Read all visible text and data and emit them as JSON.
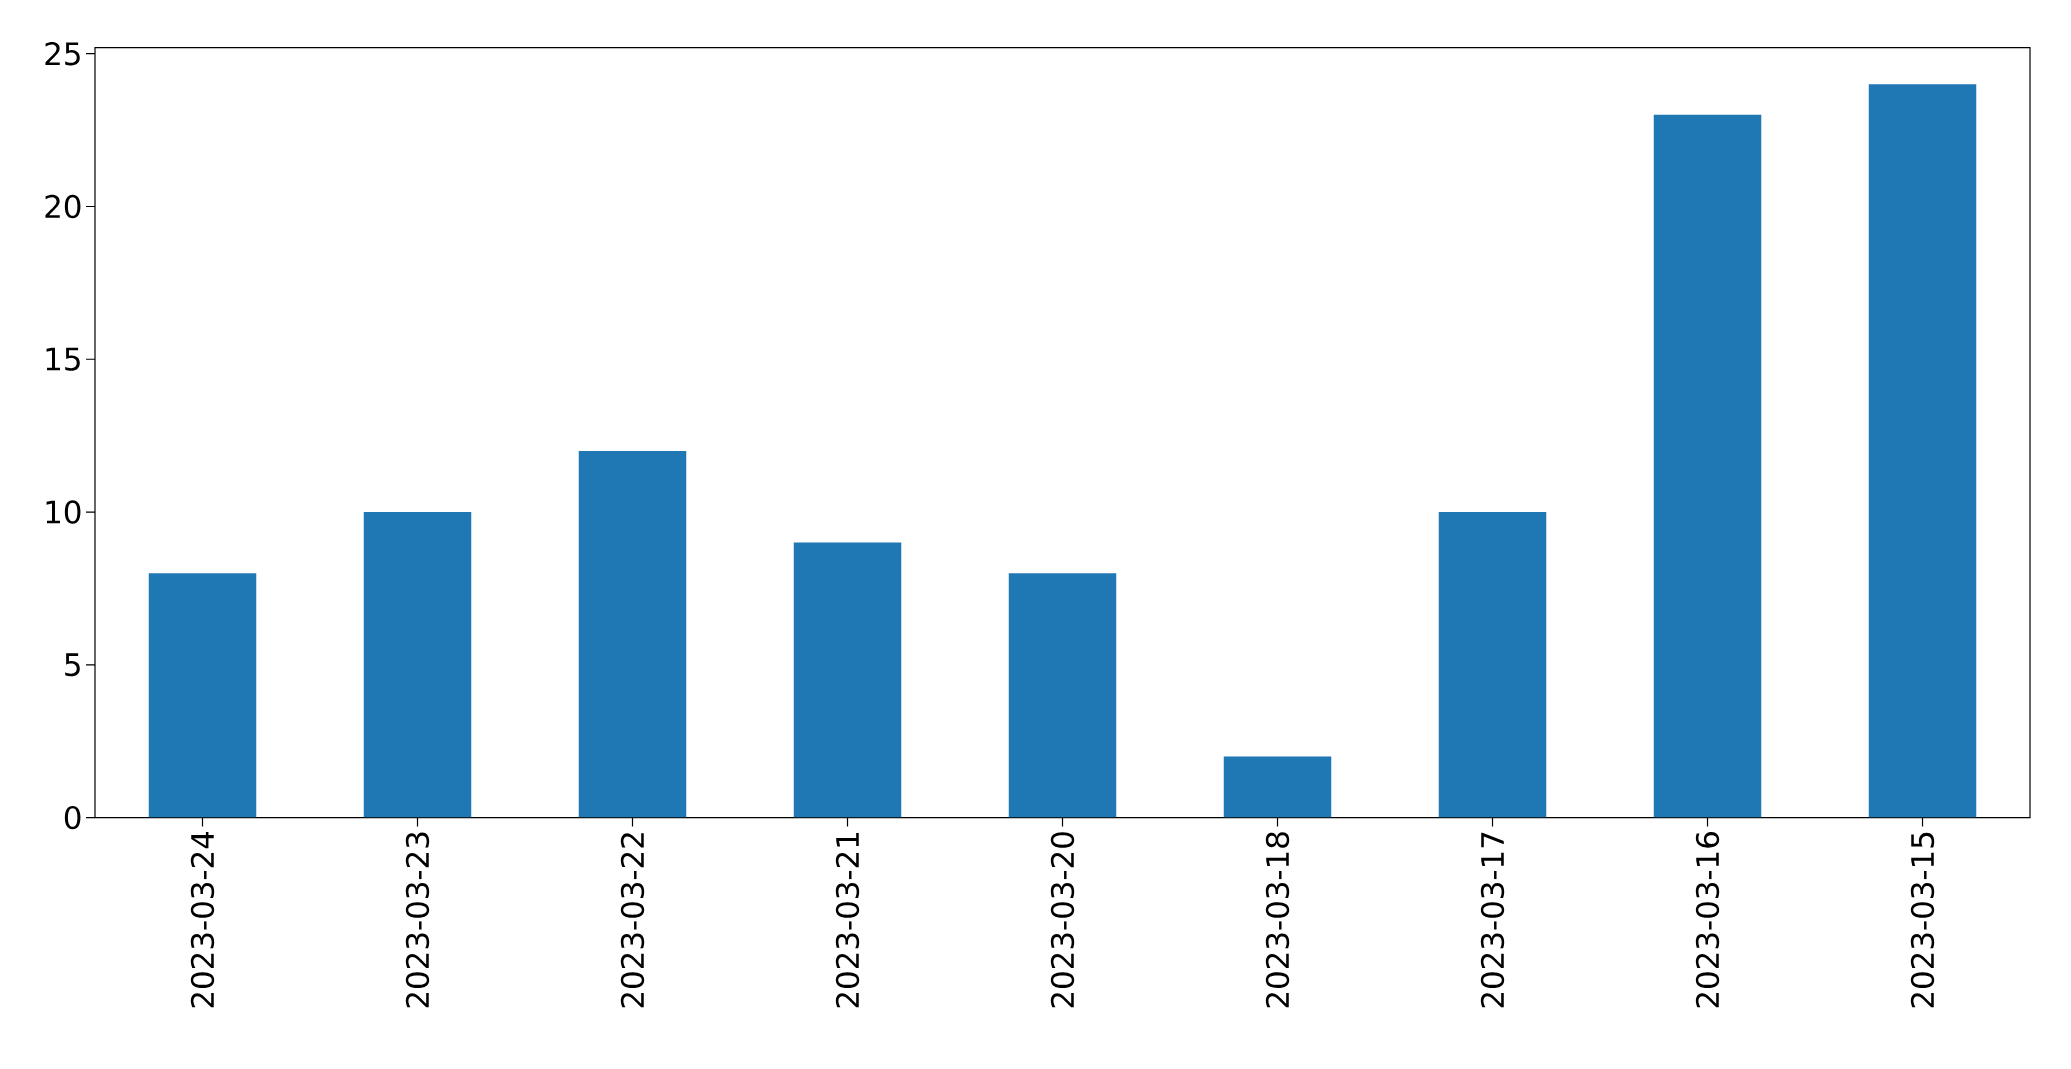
{
  "chart_data": {
    "type": "bar",
    "categories": [
      "2023-03-24",
      "2023-03-23",
      "2023-03-22",
      "2023-03-21",
      "2023-03-20",
      "2023-03-18",
      "2023-03-17",
      "2023-03-16",
      "2023-03-15"
    ],
    "values": [
      8,
      10,
      12,
      9,
      8,
      2,
      10,
      23,
      24
    ],
    "color": "#1f77b4",
    "ylim": [
      0,
      25.2
    ],
    "yticks": [
      0,
      5,
      10,
      15,
      20,
      25
    ]
  }
}
